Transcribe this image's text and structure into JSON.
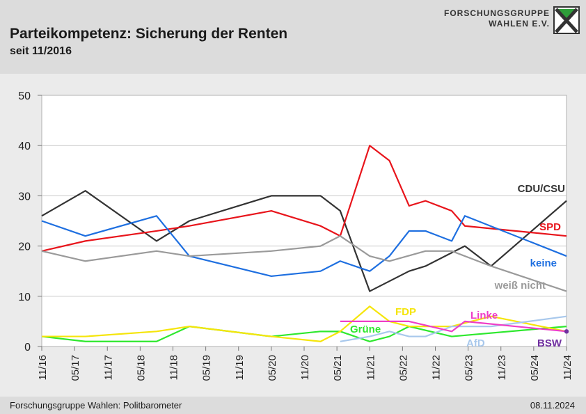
{
  "header": {
    "title": "Parteikompetenz: Sicherung der Renten",
    "subtitle": "seit 11/2016",
    "logo_line1": "FORSCHUNGSGRUPPE",
    "logo_line2": "WAHLEN E.V."
  },
  "footer": {
    "source": "Forschungsgruppe Wahlen: Politbarometer",
    "date": "08.11.2024"
  },
  "chart_data": {
    "type": "line",
    "ylim": [
      0,
      50
    ],
    "yticks": [
      "0",
      "10",
      "20",
      "30",
      "40",
      "50"
    ],
    "xlim": [
      0,
      16
    ],
    "categories": [
      "11/16",
      "05/17",
      "11/17",
      "05/18",
      "11/18",
      "05/19",
      "11/19",
      "05/20",
      "11/20",
      "05/21",
      "11/21",
      "05/22",
      "11/22",
      "05/23",
      "11/23",
      "05/24",
      "11/24"
    ],
    "grid": true,
    "series": [
      {
        "name": "CDU/CSU",
        "color": "#333333",
        "x": [
          0,
          1.33,
          3.5,
          4.5,
          7,
          8.5,
          9.1,
          10,
          11.2,
          11.7,
          12.9,
          13.7,
          16
        ],
        "y": [
          26,
          31,
          21,
          25,
          30,
          30,
          27,
          11,
          15,
          16,
          20,
          16,
          29
        ]
      },
      {
        "name": "SPD",
        "color": "#e8141b",
        "x": [
          0,
          1.33,
          3.5,
          4.5,
          7,
          8.5,
          9.1,
          10,
          10.6,
          11.2,
          11.7,
          12.5,
          12.9,
          16
        ],
        "y": [
          19,
          21,
          23,
          24,
          27,
          24,
          22,
          40,
          37,
          28,
          29,
          27,
          24,
          22
        ]
      },
      {
        "name": "keine",
        "color": "#1e6fe0",
        "x": [
          0,
          1.33,
          3.5,
          4.5,
          7,
          8.5,
          9.1,
          10,
          10.6,
          11.2,
          11.7,
          12.5,
          12.9,
          16
        ],
        "y": [
          25,
          22,
          26,
          18,
          14,
          15,
          17,
          15,
          18,
          23,
          23,
          21,
          26,
          18
        ]
      },
      {
        "name": "weiß nicht",
        "color": "#9a9a9a",
        "x": [
          0,
          1.33,
          3.5,
          4.5,
          7,
          8.5,
          9.1,
          10,
          10.6,
          11.7,
          12.5,
          13.7,
          16
        ],
        "y": [
          19,
          17,
          19,
          18,
          19,
          20,
          22,
          18,
          17,
          19,
          19,
          16,
          11
        ]
      },
      {
        "name": "Grüne",
        "color": "#2ee82e",
        "x": [
          0,
          1.33,
          3.5,
          4.5,
          7,
          8.5,
          9.1,
          10,
          10.6,
          11.2,
          12.5,
          16
        ],
        "y": [
          2,
          1,
          1,
          4,
          2,
          3,
          3,
          1,
          2,
          4,
          2,
          4
        ]
      },
      {
        "name": "FDP",
        "color": "#f5e50a",
        "x": [
          0,
          1.33,
          3.5,
          4.5,
          7,
          8.5,
          9.1,
          10,
          10.6,
          11.2,
          12.5,
          13.7,
          16
        ],
        "y": [
          2,
          2,
          3,
          4,
          2,
          1,
          3,
          8,
          5,
          4,
          4,
          6,
          3
        ]
      },
      {
        "name": "AfD",
        "color": "#a8c8ec",
        "x": [
          9.1,
          10,
          10.6,
          11.2,
          11.7,
          12.5,
          13.7,
          16
        ],
        "y": [
          1,
          2,
          3,
          2,
          2,
          4,
          4,
          6
        ]
      },
      {
        "name": "Linke",
        "color": "#ee3ec8",
        "x": [
          9.1,
          10,
          10.6,
          11.2,
          12.5,
          12.9,
          16
        ],
        "y": [
          5,
          5,
          5,
          5,
          3,
          5,
          3
        ]
      },
      {
        "name": "BSW",
        "color": "#7030a0",
        "x": [
          16
        ],
        "y": [
          3
        ]
      }
    ],
    "labels": [
      {
        "text": "CDU/CSU",
        "color": "#333333"
      },
      {
        "text": "SPD",
        "color": "#e8141b"
      },
      {
        "text": "keine",
        "color": "#1e6fe0"
      },
      {
        "text": "weiß nicht",
        "color": "#9a9a9a"
      },
      {
        "text": "FDP",
        "color": "#f5e50a"
      },
      {
        "text": "Grüne",
        "color": "#2ee82e"
      },
      {
        "text": "Linke",
        "color": "#ee3ec8"
      },
      {
        "text": "AfD",
        "color": "#a8c8ec"
      },
      {
        "text": "BSW",
        "color": "#7030a0"
      }
    ]
  }
}
